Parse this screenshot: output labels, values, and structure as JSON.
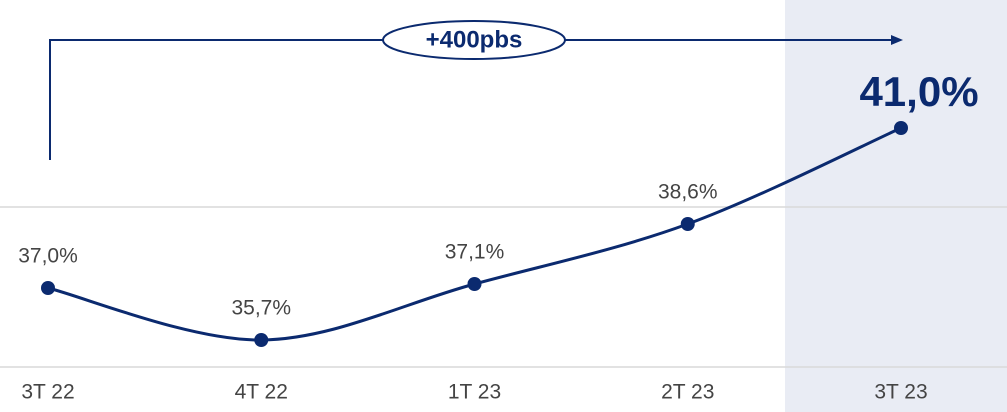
{
  "chart_data": {
    "type": "line",
    "categories": [
      "3T 22",
      "4T 22",
      "1T 23",
      "2T 23",
      "3T 23"
    ],
    "values": [
      37.0,
      35.7,
      37.1,
      38.6,
      41.0
    ],
    "value_labels": [
      "37,0%",
      "35,7%",
      "37,1%",
      "38,6%",
      "41,0%"
    ],
    "color": "#0b2a6f",
    "ylim": [
      35,
      41
    ],
    "annotation": "+400pbs"
  }
}
